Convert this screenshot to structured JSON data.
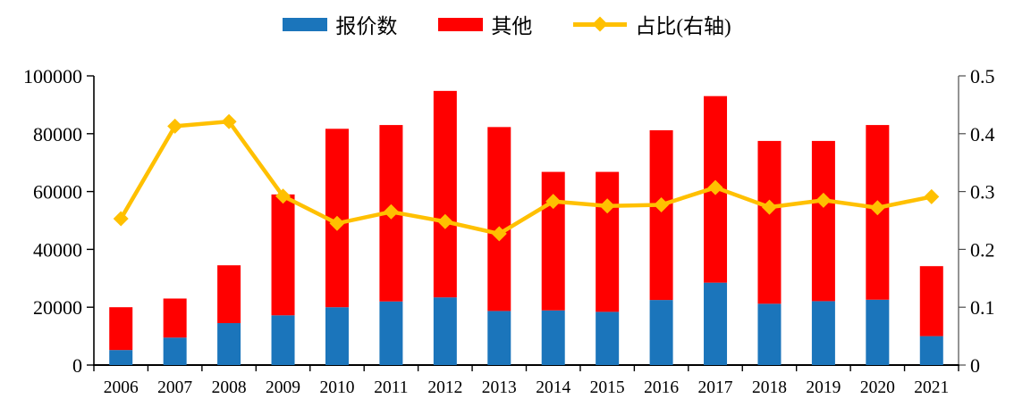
{
  "page": {
    "background": "#ffffff"
  },
  "legend": {
    "items": [
      {
        "label": "报价数",
        "color": "#1B75BB",
        "marker": "bar"
      },
      {
        "label": "其他",
        "color": "#FF0000",
        "marker": "bar"
      },
      {
        "label": "占比(右轴)",
        "color": "#FFC000",
        "marker": "line-diamond"
      }
    ]
  },
  "chart_data": {
    "type": "bar",
    "subtype": "stacked-bars-with-right-axis-line",
    "title": "",
    "xlabel": "",
    "ylabel_left": "",
    "ylabel_right": "",
    "grid": false,
    "legend_position": "top",
    "categories": [
      "2006",
      "2007",
      "2008",
      "2009",
      "2010",
      "2011",
      "2012",
      "2013",
      "2014",
      "2015",
      "2016",
      "2017",
      "2018",
      "2019",
      "2020",
      "2021"
    ],
    "series": [
      {
        "name": "报价数",
        "key": "quotes",
        "type": "bar",
        "stacked": true,
        "axis": "left",
        "color": "#1B75BB",
        "values": [
          5200,
          9500,
          14500,
          17200,
          20000,
          22000,
          23400,
          18700,
          18900,
          18400,
          22500,
          28500,
          21200,
          22100,
          22600,
          10000
        ]
      },
      {
        "name": "其他",
        "key": "other",
        "type": "bar",
        "stacked": true,
        "axis": "left",
        "color": "#FF0000",
        "values": [
          14800,
          13500,
          20000,
          41800,
          61700,
          61000,
          71400,
          63600,
          47900,
          48400,
          58700,
          64500,
          56300,
          55400,
          60400,
          24200
        ]
      },
      {
        "name": "占比(右轴)",
        "key": "ratio",
        "type": "line",
        "marker": "diamond",
        "axis": "right",
        "color": "#FFC000",
        "values": [
          0.253,
          0.413,
          0.421,
          0.292,
          0.245,
          0.265,
          0.248,
          0.227,
          0.283,
          0.275,
          0.277,
          0.307,
          0.273,
          0.285,
          0.272,
          0.291
        ]
      }
    ],
    "left_axis": {
      "min": 0,
      "max": 100000,
      "tick_labels": [
        "0",
        "20000",
        "40000",
        "60000",
        "80000",
        "100000"
      ]
    },
    "right_axis": {
      "min": 0,
      "max": 0.5,
      "tick_labels": [
        "0",
        "0.1",
        "0.2",
        "0.3",
        "0.4",
        "0.5"
      ]
    }
  }
}
